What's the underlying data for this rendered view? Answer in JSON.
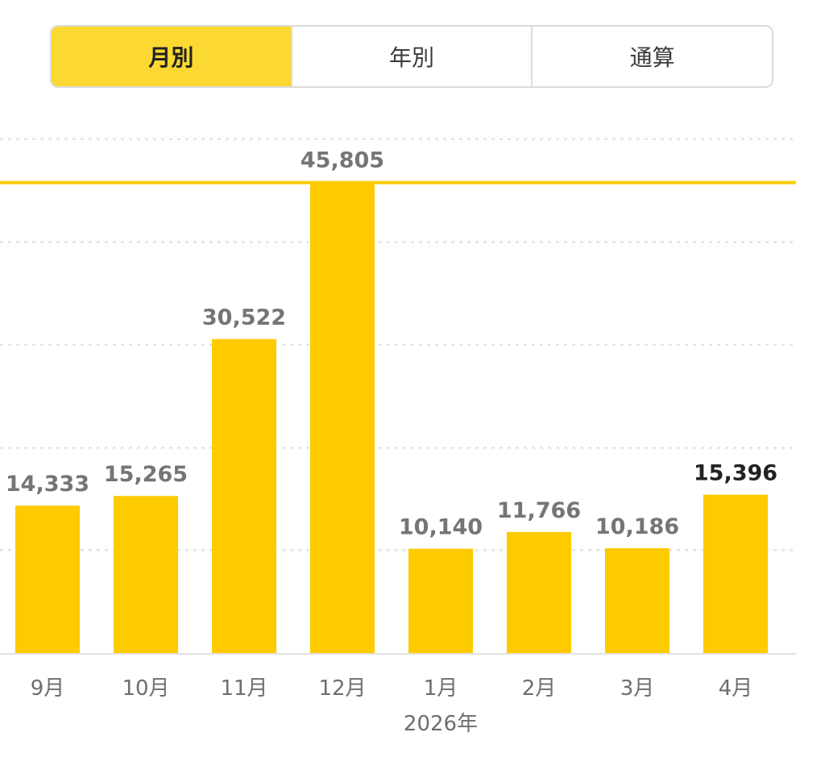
{
  "tabs": [
    {
      "label": "月別",
      "active": true
    },
    {
      "label": "年別",
      "active": false
    },
    {
      "label": "通算",
      "active": false
    }
  ],
  "colors": {
    "bar": "#fdcb00",
    "tab_active": "#fcd833",
    "grid": "#dedede",
    "baseline": "#e2e2e2",
    "label": "#757575",
    "label_highlight": "#222222",
    "xlabel": "#6e6e6e"
  },
  "chart_data": {
    "type": "bar",
    "categories": [
      "9月",
      "10月",
      "11月",
      "12月",
      "1月",
      "2月",
      "3月",
      "4月"
    ],
    "values": [
      14333,
      15265,
      30522,
      45805,
      10140,
      11766,
      10186,
      15396
    ],
    "value_labels": [
      "14,333",
      "15,265",
      "30,522",
      "45,805",
      "10,140",
      "11,766",
      "10,186",
      "15,396"
    ],
    "highlight_index": 7,
    "reference_line": 45805,
    "year_label": "2026年",
    "year_label_under": "1月",
    "ylim": [
      0,
      50000
    ],
    "grid": true
  }
}
